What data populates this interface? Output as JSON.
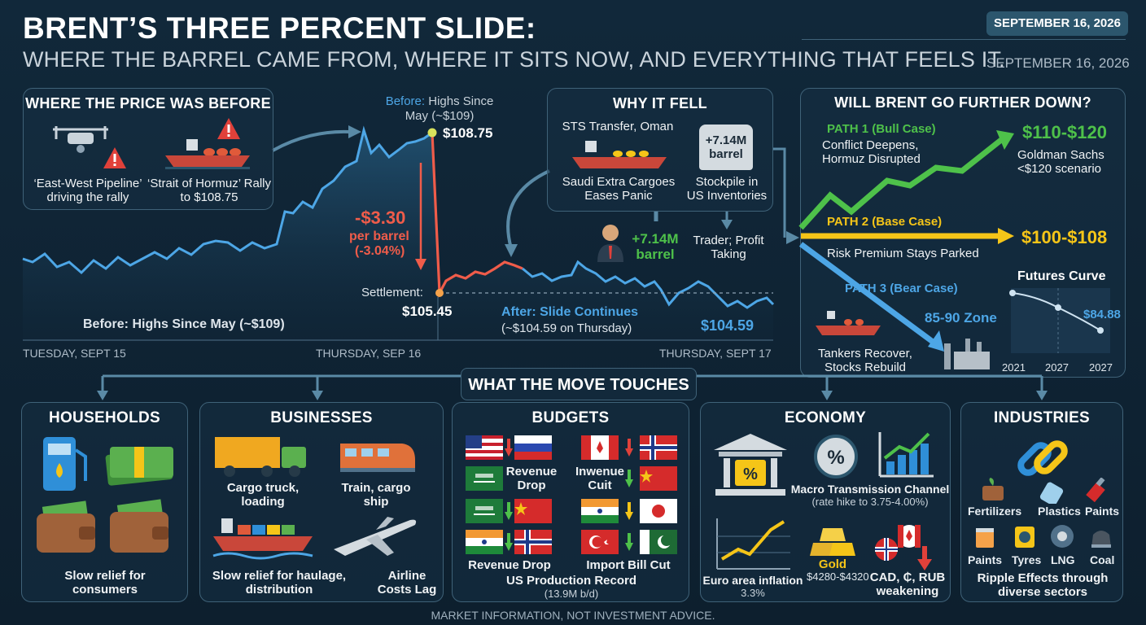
{
  "header": {
    "title": "BRENT’S THREE PERCENT SLIDE:",
    "subtitle": "WHERE THE BARREL CAME FROM, WHERE IT SITS NOW, AND EVERYTHING THAT FEELS IT.",
    "date_badge": "SEPTEMBER 16, 2026",
    "date_text": "SEPTEMBER 16, 2026"
  },
  "before_panel": {
    "title": "WHERE THE PRICE WAS BEFORE",
    "item1": "‘East-West Pipeline’ driving the rally",
    "item2": "‘Strait of Hormuz’ Rally to $108.75"
  },
  "why_panel": {
    "title": "WHY IT FELL",
    "sts": "STS Transfer, Oman",
    "saudi": "Saudi Extra Cargoes Eases Panic",
    "tank_value": "+7.14M barrel",
    "stockpile": "Stockpile in US Inventories",
    "trader_value": "+7.14M barrel",
    "trader": "Trader; Profit Taking"
  },
  "main_chart": {
    "before_top_bold": "Before:",
    "before_top_rest": "Highs Since May (~$109)",
    "peak_value": "$108.75",
    "drop_amount": "-$3.30",
    "drop_unit": "per barrel",
    "drop_pct": "(-3.04%)",
    "settlement_label": "Settlement:",
    "settlement_value": "$105.45",
    "after_title": "After: Slide Continues",
    "after_sub": "(~$104.59 on Thursday)",
    "end_value": "$104.59",
    "before_bottom_bold": "Before:",
    "before_bottom_rest": "Highs Since May (~$109)",
    "x_labels": [
      "TUESDAY, SEPT 15",
      "THURSDAY, SEP 16",
      "THURSDAY, SEPT 17"
    ]
  },
  "chart_data": {
    "type": "line",
    "x_labels": [
      "TUESDAY, SEPT 15",
      "THURSDAY, SEP 16",
      "THURSDAY, SEPT 17"
    ],
    "annotated_points": [
      {
        "label": "Before",
        "value": 108.75
      },
      {
        "label": "Settlement",
        "value": 105.45
      },
      {
        "label": "After",
        "value": 104.59
      }
    ],
    "change": -3.3,
    "change_pct": -3.04,
    "line_color": "#4da6e6",
    "drop_color": "#ef5c4a"
  },
  "forecast": {
    "title": "WILL BRENT GO FURTHER DOWN?",
    "path1_title": "PATH 1 (Bull Case)",
    "path1_desc": "Conflict Deepens, Hormuz Disrupted",
    "path1_range": "$110-$120",
    "path1_note": "Goldman Sachs <$120 scenario",
    "path2_title": "PATH 2 (Base Case)",
    "path2_desc": "Risk Premium Stays Parked",
    "path2_range": "$100-$108",
    "path3_title": "PATH 3 (Bear Case)",
    "path3_zone": "85-90 Zone",
    "path3_desc": "Tankers Recover, Stocks Rebuild",
    "futures_title": "Futures Curve",
    "futures_value": "$84.88",
    "futures_years": [
      "2021",
      "2027",
      "2027"
    ],
    "colors": {
      "bull": "#4ec14a",
      "base": "#f5c518",
      "bear": "#4da6e6"
    }
  },
  "touches_title": "WHAT THE MOVE TOUCHES",
  "households": {
    "title": "HOUSEHOLDS",
    "caption": "Slow relief for consumers"
  },
  "businesses": {
    "title": "BUSINESSES",
    "truck": "Cargo truck, loading",
    "train": "Train, cargo ship",
    "ship": "Slow relief for haulage, distribution",
    "air": "Airline Costs Lag"
  },
  "budgets": {
    "title": "BUDGETS",
    "revenue_drop": "Revenue Drop",
    "inwenue_cuit": "Inwenue Cuit",
    "revenue_drop2": "Revenue Drop",
    "import_bill": "Import Bill Cut",
    "us_record": "US Production Record",
    "us_record_sub": "(13.9M b/d)"
  },
  "economy": {
    "title": "ECONOMY",
    "macro": "Macro Transmission Channel",
    "macro_sub": "(rate hike to 3.75-4.00%)",
    "euro": "Euro area inflation",
    "euro_val": "3.3%",
    "gold": "Gold",
    "gold_val": "$4280-$4320",
    "fx": "CAD, ₵, RUB weakening"
  },
  "industries": {
    "title": "INDUSTRIES",
    "row1": [
      "Fertilizers",
      "Plastics",
      "Paints"
    ],
    "row2": [
      "Paints",
      "Tyres",
      "LNG",
      "Coal"
    ],
    "caption": "Ripple Effects through diverse sectors"
  },
  "footer": "MARKET INFORMATION, NOT INVESTMENT ADVICE."
}
